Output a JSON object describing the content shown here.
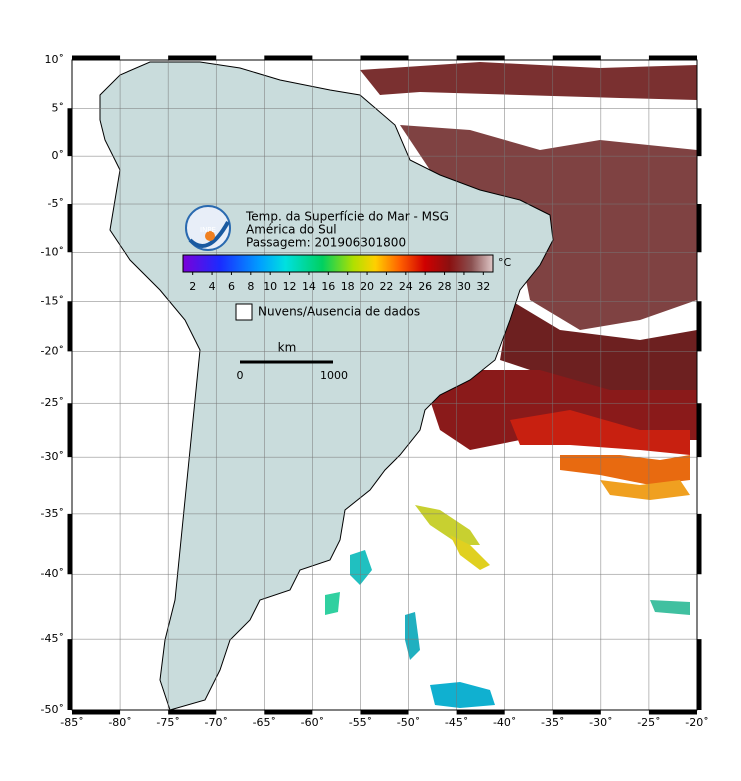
{
  "title": [
    "Temp. da Superfície do Mar - MSG",
    "América do Sul",
    "Passagem: 201906301800"
  ],
  "logo": "INPE",
  "colorbar": {
    "unit": "°C",
    "range": [
      1,
      33
    ],
    "ticks": [
      2,
      4,
      6,
      8,
      10,
      12,
      14,
      16,
      18,
      20,
      22,
      24,
      26,
      28,
      30,
      32
    ]
  },
  "legend": "Nuvens/Ausencia de dados",
  "scale": {
    "unit": "km",
    "labels": [
      0,
      1000
    ]
  },
  "map": {
    "lon_range": [
      -85,
      -20
    ],
    "lat_range": [
      -50,
      10
    ],
    "lon_ticks": [
      {
        "value": -85,
        "label": "-85˚"
      },
      {
        "value": -80,
        "label": "-80˚"
      },
      {
        "value": -75,
        "label": "-75˚"
      },
      {
        "value": -70,
        "label": "-70˚"
      },
      {
        "value": -65,
        "label": "-65˚"
      },
      {
        "value": -60,
        "label": "-60˚"
      },
      {
        "value": -55,
        "label": "-55˚"
      },
      {
        "value": -50,
        "label": "-50˚"
      },
      {
        "value": -45,
        "label": "-45˚"
      },
      {
        "value": -40,
        "label": "-40˚"
      },
      {
        "value": -35,
        "label": "-35˚"
      },
      {
        "value": -30,
        "label": "-30˚"
      },
      {
        "value": -25,
        "label": "-25˚"
      },
      {
        "value": -20,
        "label": "-20˚"
      }
    ],
    "lat_ticks": [
      {
        "value": 10,
        "label": "10˚"
      },
      {
        "value": 5,
        "label": "5˚"
      },
      {
        "value": 0,
        "label": "0˚"
      },
      {
        "value": -5,
        "label": "-5˚"
      },
      {
        "value": -10,
        "label": "-10˚"
      },
      {
        "value": -15,
        "label": "-15˚"
      },
      {
        "value": -20,
        "label": "-20˚"
      },
      {
        "value": -25,
        "label": "-25˚"
      },
      {
        "value": -30,
        "label": "-30˚"
      },
      {
        "value": -35,
        "label": "-35˚"
      },
      {
        "value": -40,
        "label": "-40˚"
      },
      {
        "value": -45,
        "label": "-45˚"
      },
      {
        "value": -50,
        "label": "-50˚"
      }
    ]
  }
}
